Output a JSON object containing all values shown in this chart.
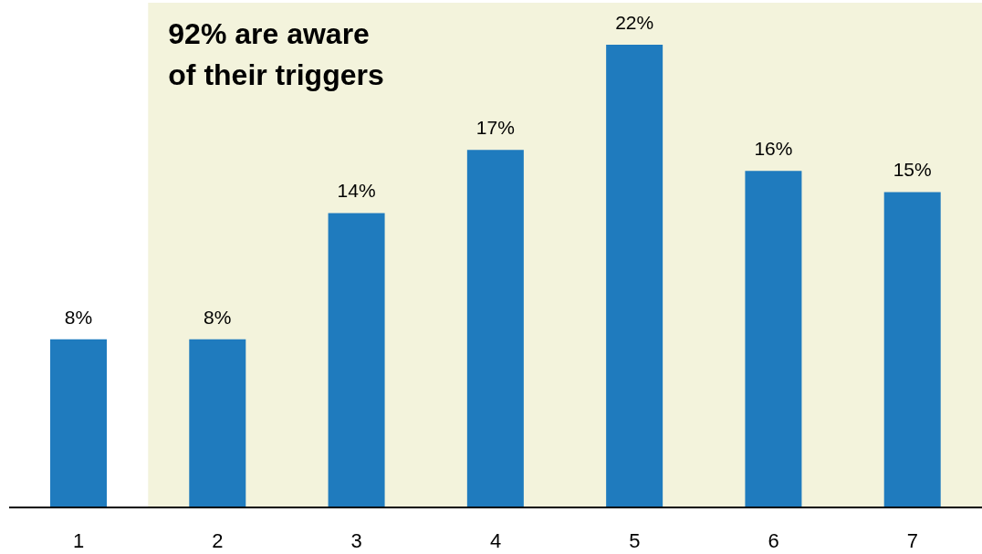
{
  "chart_data": {
    "type": "bar",
    "categories": [
      "1",
      "2",
      "3",
      "4",
      "5",
      "6",
      "7"
    ],
    "values": [
      8,
      8,
      14,
      17,
      22,
      16,
      15
    ],
    "color": "#1f7bbe",
    "value_labels": [
      "8%",
      "8%",
      "14%",
      "17%",
      "22%",
      "16%",
      "15%"
    ],
    "ylim": [
      0,
      24
    ],
    "tick_labels": "x",
    "bands": [
      {
        "axis": "x",
        "from": "2",
        "to": "7",
        "label": "92% are aware of their triggers",
        "color": "#f3f3dc"
      }
    ]
  }
}
